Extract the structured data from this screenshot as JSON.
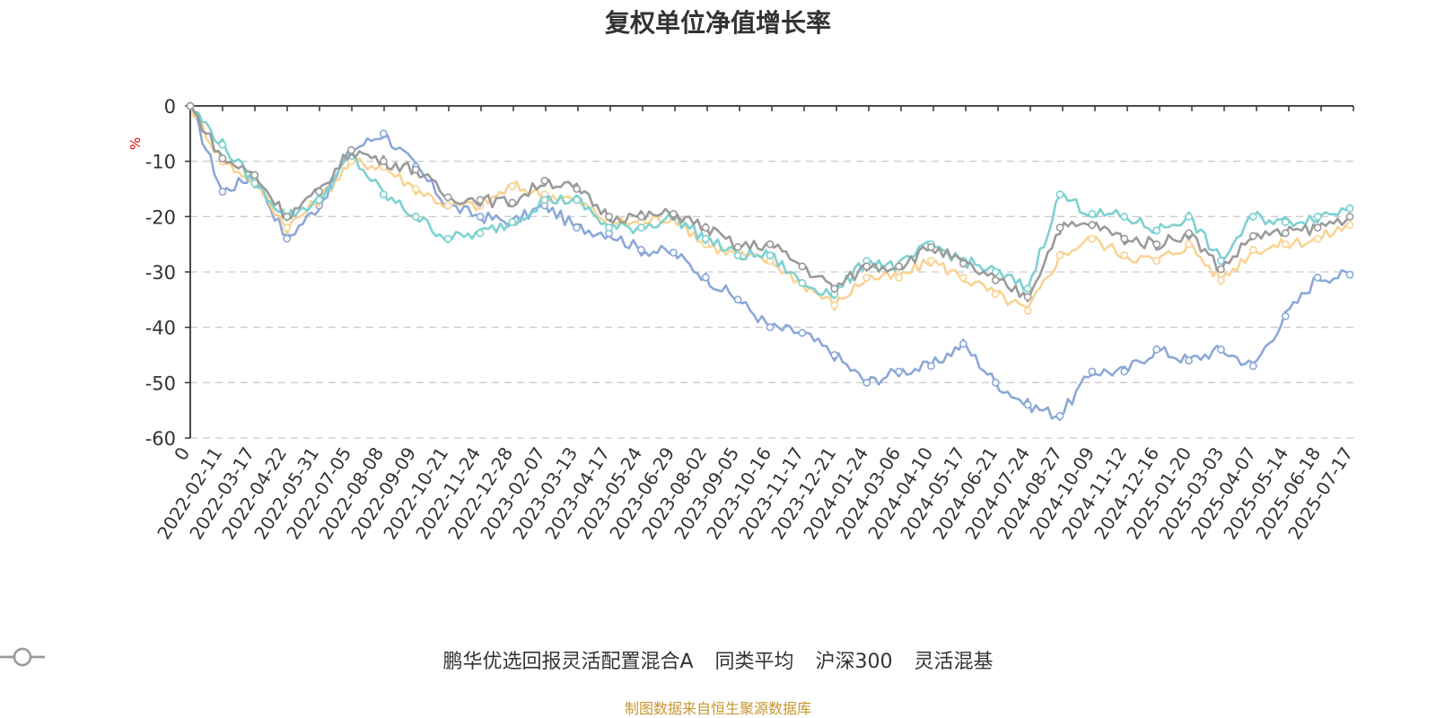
{
  "chart_data": {
    "type": "line",
    "title": "复权单位净值增长率",
    "ylabel": "%",
    "ylim": [
      -60,
      0
    ],
    "yticks": [
      0,
      -10,
      -20,
      -30,
      -40,
      -50,
      -60
    ],
    "grid": true,
    "legend_position": "bottom",
    "x_start_label": "0",
    "x_tick_labels": [
      "2022-02-11",
      "2022-03-17",
      "2022-04-22",
      "2022-05-31",
      "2022-07-05",
      "2022-08-08",
      "2022-09-09",
      "2022-10-21",
      "2022-11-24",
      "2022-12-28",
      "2023-02-07",
      "2023-03-13",
      "2023-04-17",
      "2023-05-24",
      "2023-06-29",
      "2023-08-02",
      "2023-09-05",
      "2023-10-16",
      "2023-11-17",
      "2023-12-21",
      "2024-01-24",
      "2024-03-06",
      "2024-04-10",
      "2024-05-17",
      "2024-06-21",
      "2024-07-24",
      "2024-08-27",
      "2024-10-09",
      "2024-11-12",
      "2024-12-16",
      "2025-01-20",
      "2025-03-03",
      "2025-04-07",
      "2025-05-14",
      "2025-06-18",
      "2025-07-17"
    ],
    "series": [
      {
        "name": "鹏华优选回报灵活配置混合A",
        "color": "#8ca8d8",
        "values": [
          0,
          -15.5,
          -12.5,
          -24,
          -18,
          -8,
          -5,
          -11,
          -18,
          -20,
          -21,
          -18,
          -22,
          -23,
          -26,
          -26.5,
          -31,
          -35,
          -40,
          -41,
          -45,
          -50,
          -48,
          -47,
          -43,
          -50,
          -54,
          -56,
          -48,
          -48,
          -44,
          -46,
          -44,
          -47,
          -38,
          -31,
          -30.5
        ]
      },
      {
        "name": "同类平均",
        "color": "#f9d394",
        "values": [
          0,
          -10,
          -13.5,
          -22,
          -17,
          -10,
          -11,
          -15,
          -18,
          -18,
          -14.5,
          -16,
          -17,
          -21,
          -21,
          -20,
          -25,
          -27,
          -28,
          -32,
          -36,
          -31,
          -31,
          -28,
          -31,
          -34,
          -37,
          -27,
          -24,
          -27,
          -28,
          -25,
          -31.5,
          -26,
          -25,
          -24,
          -21.5
        ]
      },
      {
        "name": "沪深300",
        "color": "#7ed1d1",
        "values": [
          0,
          -7,
          -14,
          -20,
          -17,
          -9,
          -16,
          -20,
          -24,
          -23,
          -21,
          -17,
          -17,
          -22,
          -22,
          -20,
          -24,
          -27,
          -27,
          -32,
          -34,
          -28,
          -29,
          -25,
          -28,
          -30,
          -33,
          -16,
          -19.5,
          -20,
          -22.5,
          -20,
          -28,
          -20,
          -21,
          -20,
          -18.5
        ]
      },
      {
        "name": "灵活混基",
        "color": "#9a9a9a",
        "values": [
          0,
          -9.5,
          -12.5,
          -20,
          -15.5,
          -8,
          -10,
          -11.5,
          -16.5,
          -17,
          -17.5,
          -13.5,
          -15,
          -20,
          -20,
          -19.5,
          -22,
          -25.5,
          -25,
          -29,
          -33,
          -29,
          -29,
          -25.5,
          -28.5,
          -31.5,
          -34.5,
          -22,
          -21.5,
          -24,
          -25,
          -23,
          -29.5,
          -23.5,
          -23,
          -22,
          -20
        ]
      }
    ]
  },
  "footer": {
    "source": "制图数据来自恒生聚源数据库"
  }
}
